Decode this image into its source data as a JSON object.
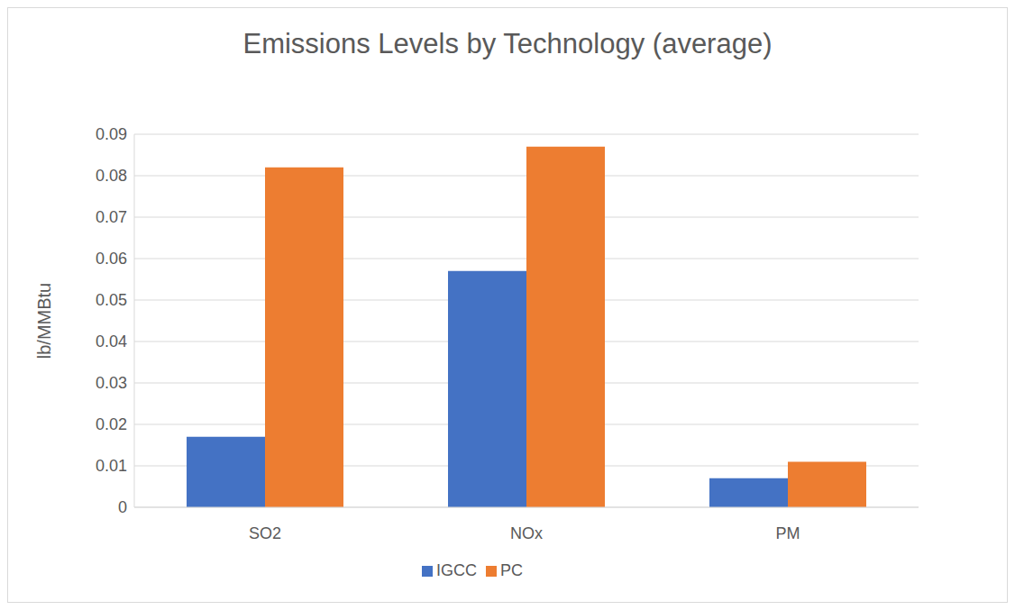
{
  "chart_data": {
    "type": "bar",
    "title": "Emissions Levels by Technology (average)",
    "y_label": "lb/MMBtu",
    "categories": [
      "SO2",
      "NOx",
      "PM"
    ],
    "series": [
      {
        "name": "IGCC",
        "color": "#4472c4",
        "values": [
          0.017,
          0.057,
          0.007
        ]
      },
      {
        "name": "PC",
        "color": "#ed7d31",
        "values": [
          0.082,
          0.087,
          0.011
        ]
      }
    ],
    "ylim": [
      0,
      0.09
    ],
    "yticks": [
      0,
      0.01,
      0.02,
      0.03,
      0.04,
      0.05,
      0.06,
      0.07,
      0.08,
      0.09
    ],
    "grid": true,
    "legend": "bottom"
  }
}
